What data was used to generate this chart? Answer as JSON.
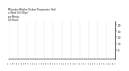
{
  "title": "Milwaukee Weather Outdoor Temperature (Red)\nvs Wind Chill (Blue)\nper Minute\n(24 Hours)",
  "background_color": "#ffffff",
  "line_color_temp": "#ff0000",
  "line_color_wind": "#0000ff",
  "ylim": [
    -15,
    45
  ],
  "xlim": [
    0,
    1439
  ],
  "yticks": [
    0,
    10,
    20,
    30,
    40
  ],
  "ytick_labels": [
    "0",
    "10",
    "20",
    "30",
    "40"
  ],
  "num_points": 1440,
  "marker_size": 0.3,
  "linewidth": 0.0
}
